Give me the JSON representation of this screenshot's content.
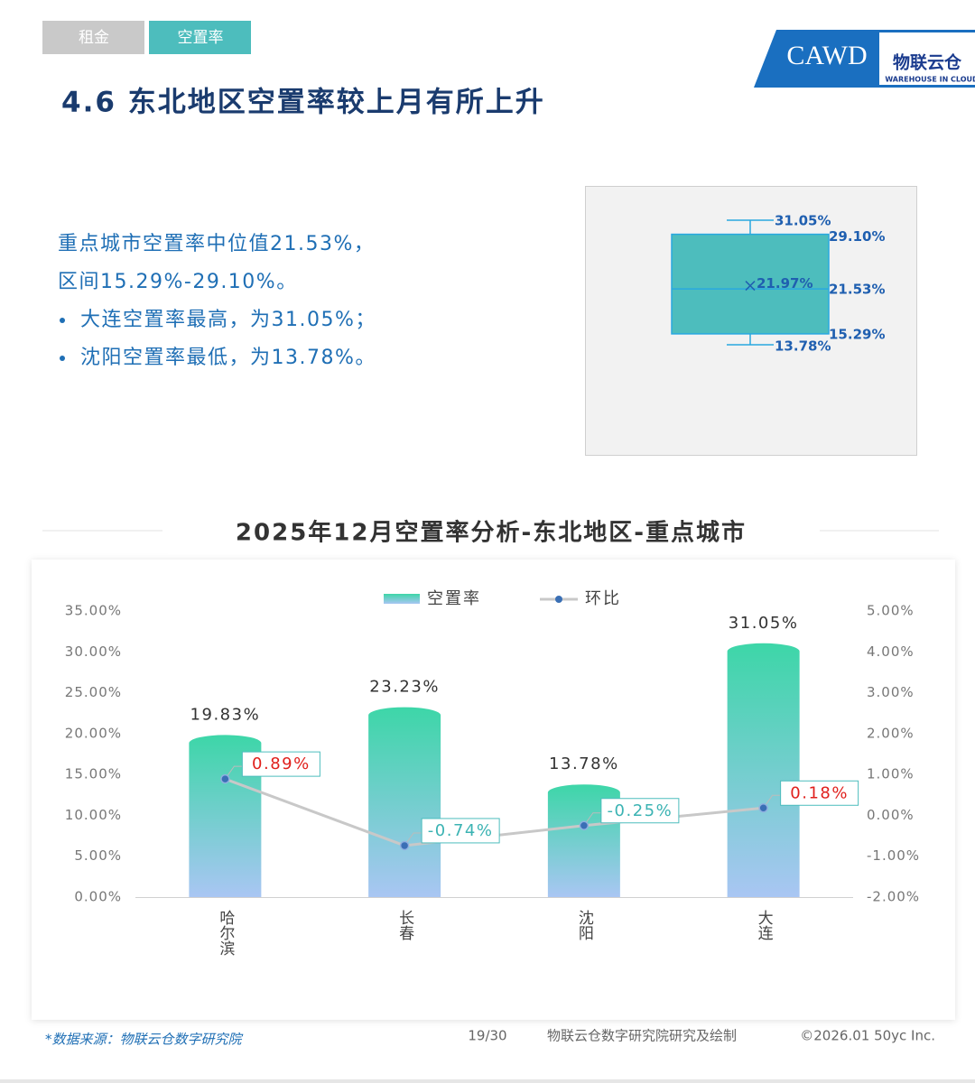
{
  "tabs": [
    "租金",
    "空置率"
  ],
  "header": {
    "title": "4.6 东北地区空置率较上月有所上升",
    "logo_main": "CAWD",
    "logo_brand": "物联云仓",
    "logo_sub": "WAREHOUSE IN CLOUD"
  },
  "summary": {
    "lines": [
      "重点城市空置率中位值21.53%，",
      "区间15.29%-29.10%。"
    ],
    "bullets": [
      "大连空置率最高，为31.05%；",
      "沈阳空置率最低，为13.78%。"
    ]
  },
  "chart_data": [
    {
      "type": "box",
      "color": "#4dbdbd",
      "stats": {
        "min": 13.78,
        "q1": 15.29,
        "median": 21.53,
        "mean": 21.97,
        "q3": 29.1,
        "max": 31.05
      },
      "value_labels": {
        "min": "13.78%",
        "q1": "15.29%",
        "median": "21.53%",
        "mean": "21.97%",
        "q3": "29.10%",
        "max": "31.05%"
      }
    },
    {
      "type": "bar_line",
      "title": "2025年12月空置率分析-东北地区-重点城市",
      "categories": [
        "哈尔滨",
        "长春",
        "沈阳",
        "大连"
      ],
      "series": [
        {
          "name": "空置率",
          "type": "bar",
          "color": "#3dd6a8",
          "values": [
            19.83,
            23.23,
            13.78,
            31.05
          ],
          "value_labels": [
            "19.83%",
            "23.23%",
            "13.78%",
            "31.05%"
          ]
        },
        {
          "name": "环比",
          "type": "line",
          "axis": "y2",
          "color": "#c8c8c8",
          "values": [
            0.89,
            -0.74,
            -0.25,
            0.18
          ],
          "value_labels": [
            "0.89%",
            "-0.74%",
            "-0.25%",
            "0.18%"
          ]
        }
      ],
      "ylim": [
        0,
        35
      ],
      "yticks": [
        {
          "value": 0,
          "label": "0.00%"
        },
        {
          "value": 5,
          "label": "5.00%"
        },
        {
          "value": 10,
          "label": "10.00%"
        },
        {
          "value": 15,
          "label": "15.00%"
        },
        {
          "value": 20,
          "label": "20.00%"
        },
        {
          "value": 25,
          "label": "25.00%"
        },
        {
          "value": 30,
          "label": "30.00%"
        },
        {
          "value": 35,
          "label": "35.00%"
        }
      ],
      "y2lim": [
        -2,
        5
      ],
      "y2ticks": [
        {
          "value": -2,
          "label": "-2.00%"
        },
        {
          "value": -1,
          "label": "-1.00%"
        },
        {
          "value": 0,
          "label": "0.00%"
        },
        {
          "value": 1,
          "label": "1.00%"
        },
        {
          "value": 2,
          "label": "2.00%"
        },
        {
          "value": 3,
          "label": "3.00%"
        },
        {
          "value": 4,
          "label": "4.00%"
        },
        {
          "value": 5,
          "label": "5.00%"
        }
      ],
      "grid": false,
      "legend": "top"
    }
  ],
  "footer": {
    "source": "*数据来源：物联云仓数字研究院",
    "page": "19/30",
    "credit": "物联云仓数字研究院研究及绘制",
    "copyright": "©2026.01 50yc Inc."
  }
}
